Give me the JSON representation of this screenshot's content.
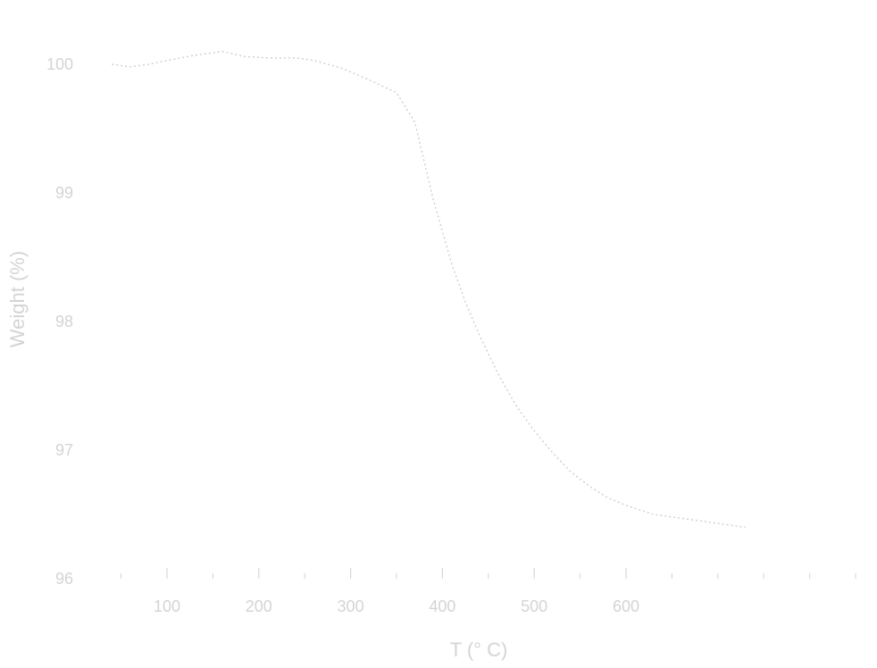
{
  "chart_data": {
    "type": "line",
    "title": "",
    "xlabel": "T (° C)",
    "ylabel": "Weight (%)",
    "xlim": [
      30,
      850
    ],
    "ylim": [
      96,
      100
    ],
    "x_ticks": [
      100,
      200,
      300,
      400,
      500,
      600
    ],
    "y_ticks": [
      96,
      97,
      98,
      99,
      100
    ],
    "x_tick_labels": [
      "100",
      "200",
      "300",
      "400",
      "500",
      "600"
    ],
    "y_tick_labels": [
      "96",
      "97",
      "98",
      "99",
      "100"
    ],
    "grid": false,
    "legend": "none",
    "line_color": "#cfcfcf",
    "series": [
      {
        "x": [
          40,
          60,
          80,
          100,
          130,
          160,
          185,
          210,
          240,
          260,
          290,
          320,
          350,
          370,
          380,
          390,
          400,
          410,
          425,
          440,
          460,
          480,
          500,
          520,
          540,
          560,
          580,
          600,
          630,
          660,
          690,
          700,
          710,
          720,
          730
        ],
        "y": [
          100.0,
          99.98,
          100.0,
          100.03,
          100.07,
          100.1,
          100.06,
          100.05,
          100.05,
          100.03,
          99.97,
          99.88,
          99.78,
          99.55,
          99.25,
          98.95,
          98.7,
          98.45,
          98.15,
          97.9,
          97.6,
          97.35,
          97.15,
          96.98,
          96.83,
          96.72,
          96.63,
          96.57,
          96.5,
          96.47,
          96.44,
          96.43,
          96.42,
          96.41,
          96.4
        ]
      }
    ]
  }
}
